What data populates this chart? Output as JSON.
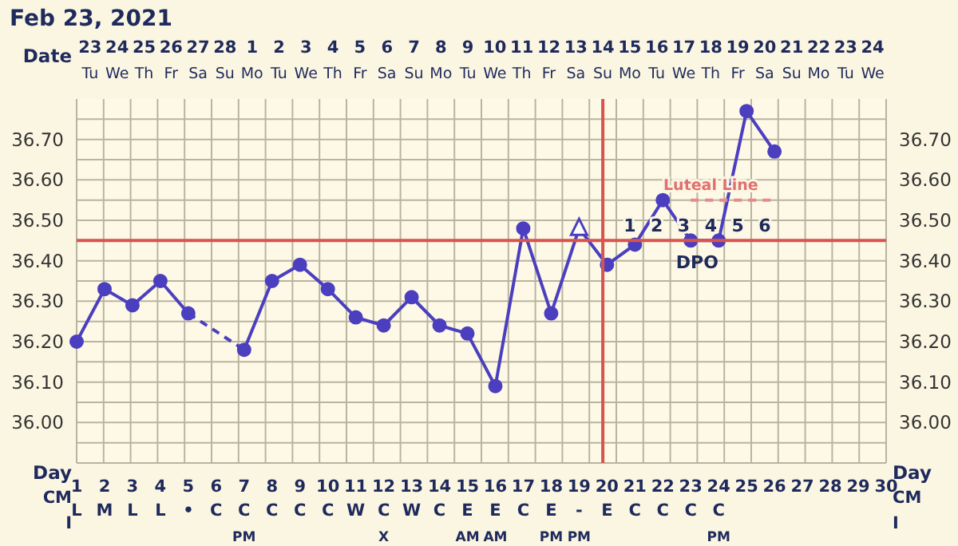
{
  "chart_data": {
    "type": "line",
    "title": "Feb 23, 2021",
    "xlabel": "Day",
    "categories": [
      "1\nL",
      "2\nM",
      "3\nL",
      "4\nL",
      "5\n•",
      "6\nC",
      "7\nC\nPM",
      "8\nC",
      "9\nC",
      "10\nC",
      "11\nW",
      "12\nC\nX",
      "13\nW",
      "14\nC",
      "15\nE\nAM",
      "16\nE\nAM",
      "17\nC",
      "18\nE\nPM",
      "19\n-\nPM",
      "20\nE",
      "21\nC",
      "22\nC",
      "23\nC",
      "24\nC\nPM",
      "25",
      "26",
      "27",
      "28",
      "29",
      "30"
    ],
    "series": [
      {
        "color": "#4b3fbf",
        "x": [
          "1\nL",
          "2\nM",
          "3\nL",
          "4\nL",
          "5\n•"
        ],
        "values": [
          36.2,
          36.33,
          36.29,
          36.35,
          36.27
        ]
      },
      {
        "color": "#4b3fbf",
        "line_style": "dashed",
        "marker": "none",
        "x": [
          "5\n•",
          "7\nC\nPM"
        ],
        "values": [
          36.27,
          36.18
        ]
      },
      {
        "color": "#4b3fbf",
        "x": [
          "7\nC\nPM",
          "8\nC",
          "9\nC",
          "10\nC",
          "11\nW",
          "12\nC\nX",
          "13\nW",
          "14\nC",
          "15\nE\nAM",
          "16\nE\nAM",
          "17\nC",
          "18\nE\nPM",
          "19\n-\nPM",
          "20\nE",
          "21\nC",
          "22\nC",
          "23\nC",
          "24\nC\nPM",
          "25",
          "26"
        ],
        "values": [
          36.18,
          36.35,
          36.39,
          36.33,
          36.26,
          36.24,
          36.31,
          36.24,
          36.22,
          36.09,
          36.48,
          36.27,
          36.48,
          36.39,
          36.44,
          36.55,
          36.45,
          36.45,
          36.77,
          36.67
        ]
      },
      {
        "type": "scatter",
        "color": "#4b3fbf",
        "marker": "triangle",
        "x": [
          "19\n-\nPM"
        ],
        "values": [
          36.48
        ]
      },
      {
        "color": "#e88a8a",
        "line_style": "dashed",
        "marker": "none",
        "x": [
          "23\nC",
          "24\nC\nPM",
          "25",
          "26"
        ],
        "values": [
          36.55,
          36.55,
          36.55,
          36.55
        ]
      }
    ],
    "ylim": [
      35.9,
      36.8
    ],
    "yticks": [
      {
        "value": 35.95,
        "label": null
      },
      {
        "value": 36,
        "label": "36.00"
      },
      {
        "value": 36.05,
        "label": null
      },
      {
        "value": 36.1,
        "label": "36.10"
      },
      {
        "value": 36.15,
        "label": null
      },
      {
        "value": 36.2,
        "label": "36.20"
      },
      {
        "value": 36.25,
        "label": null
      },
      {
        "value": 36.3,
        "label": "36.30"
      },
      {
        "value": 36.35,
        "label": null
      },
      {
        "value": 36.4,
        "label": "36.40"
      },
      {
        "value": 36.5,
        "label": "36.50"
      },
      {
        "value": 36.55,
        "label": null
      },
      {
        "value": 36.6,
        "label": "36.60"
      },
      {
        "value": 36.65,
        "label": null
      },
      {
        "value": 36.7,
        "label": "36.70"
      },
      {
        "value": 36.75,
        "label": null
      }
    ],
    "y2lim": [
      35.9,
      36.8
    ],
    "y2ticks": [
      {
        "value": 35.95,
        "label": null
      },
      {
        "value": 36,
        "label": "36.00"
      },
      {
        "value": 36.05,
        "label": null
      },
      {
        "value": 36.1,
        "label": "36.10"
      },
      {
        "value": 36.15,
        "label": null
      },
      {
        "value": 36.2,
        "label": "36.20"
      },
      {
        "value": 36.25,
        "label": null
      },
      {
        "value": 36.3,
        "label": "36.30"
      },
      {
        "value": 36.35,
        "label": null
      },
      {
        "value": 36.4,
        "label": "36.40"
      },
      {
        "value": 36.5,
        "label": "36.50"
      },
      {
        "value": 36.55,
        "label": null
      },
      {
        "value": 36.6,
        "label": "36.60"
      },
      {
        "value": 36.65,
        "label": null
      },
      {
        "value": 36.7,
        "label": "36.70"
      },
      {
        "value": 36.75,
        "label": null
      }
    ],
    "ref_lines": [
      {
        "axis": "y",
        "value": 36.45,
        "color": "#d9534f"
      },
      {
        "axis": "x",
        "value": "20\nE",
        "color": "#d9534f"
      }
    ],
    "grid": true,
    "marker": "circle",
    "annotations": [
      "Date",
      "23\nTu",
      "24\nWe",
      "25\nTh",
      "26\nFr",
      "27\nSa",
      "28\nSu",
      "1\nMo",
      "2\nTu",
      "3\nWe",
      "4\nTh",
      "5\nFr",
      "6\nSa",
      "7\nSu",
      "8\nMo",
      "9\nTu",
      "10\nWe",
      "11\nTh",
      "12\nFr",
      "13\nSa",
      "14\nSu",
      "15\nMo",
      "16\nTu",
      "17\nWe",
      "18\nTh",
      "19\nFr",
      "20\nSa",
      "21\nSu",
      "22\nMo",
      "23\nTu",
      "24\nWe",
      "CM",
      "I",
      "DPO",
      {
        "text": "1",
        "x": "21\nC",
        "y": 36.45
      },
      {
        "text": "2",
        "x": "22\nC",
        "y": 36.45
      },
      {
        "text": "3",
        "x": "23\nC",
        "y": 36.45
      },
      {
        "text": "4",
        "x": "24\nC\nPM",
        "y": 36.45
      },
      {
        "text": "5",
        "x": "25",
        "y": 36.45
      },
      {
        "text": "6",
        "x": "26",
        "y": 36.45
      },
      {
        "text": "Luteal Line",
        "x": "24\nC\nPM",
        "y": 36.55
      }
    ]
  }
}
